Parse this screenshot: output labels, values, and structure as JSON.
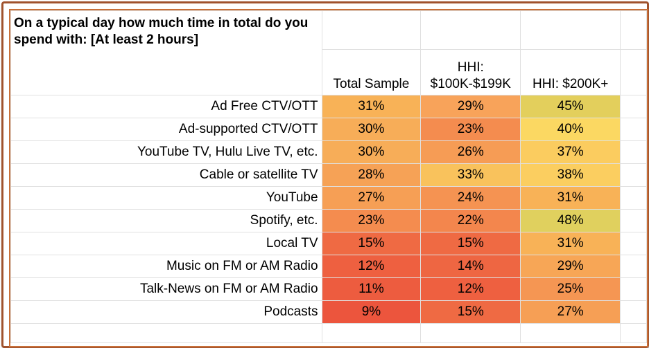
{
  "chart_data": {
    "type": "table",
    "title": "On a typical day how much time in total do you spend with: [At least 2 hours]",
    "columns": [
      "Total Sample",
      "HHI: $100K-$199K",
      "HHI: $200K+"
    ],
    "rows": [
      {
        "label": "Ad Free CTV/OTT",
        "values": [
          "31%",
          "29%",
          "45%"
        ],
        "colors": [
          "#f8b257",
          "#f8a35a",
          "#e3cf5c"
        ]
      },
      {
        "label": "Ad-supported CTV/OTT",
        "values": [
          "30%",
          "23%",
          "40%"
        ],
        "colors": [
          "#f7ad58",
          "#f48c4f",
          "#fbd862"
        ]
      },
      {
        "label": "YouTube TV, Hulu Live TV, etc.",
        "values": [
          "30%",
          "26%",
          "37%"
        ],
        "colors": [
          "#f7ad58",
          "#f69c55",
          "#fbcc5f"
        ]
      },
      {
        "label": "Cable or satellite TV",
        "values": [
          "28%",
          "33%",
          "38%"
        ],
        "colors": [
          "#f6a256",
          "#f9c25c",
          "#fbce60"
        ]
      },
      {
        "label": "YouTube",
        "values": [
          "27%",
          "24%",
          "31%"
        ],
        "colors": [
          "#f69f55",
          "#f59352",
          "#f8b257"
        ]
      },
      {
        "label": "Spotify, etc.",
        "values": [
          "23%",
          "22%",
          "48%"
        ],
        "colors": [
          "#f48c4f",
          "#f3864d",
          "#e0d05e"
        ]
      },
      {
        "label": "Local TV",
        "values": [
          "15%",
          "15%",
          "31%"
        ],
        "colors": [
          "#ef6a43",
          "#ef6a43",
          "#f8b257"
        ]
      },
      {
        "label": "Music on FM or AM Radio",
        "values": [
          "12%",
          "14%",
          "29%"
        ],
        "colors": [
          "#ee6040",
          "#ee6642",
          "#f7a656"
        ]
      },
      {
        "label": "Talk-News on FM or AM Radio",
        "values": [
          "11%",
          "12%",
          "25%"
        ],
        "colors": [
          "#ed5c3f",
          "#ee6040",
          "#f59653"
        ]
      },
      {
        "label": "Podcasts",
        "values": [
          "9%",
          "15%",
          "27%"
        ],
        "colors": [
          "#ec553d",
          "#ef6a43",
          "#f69f55"
        ]
      }
    ]
  },
  "colors": {
    "frame_outer": "#a0522d",
    "frame_inner": "#c8703a",
    "grid": "#e0e0e0"
  }
}
